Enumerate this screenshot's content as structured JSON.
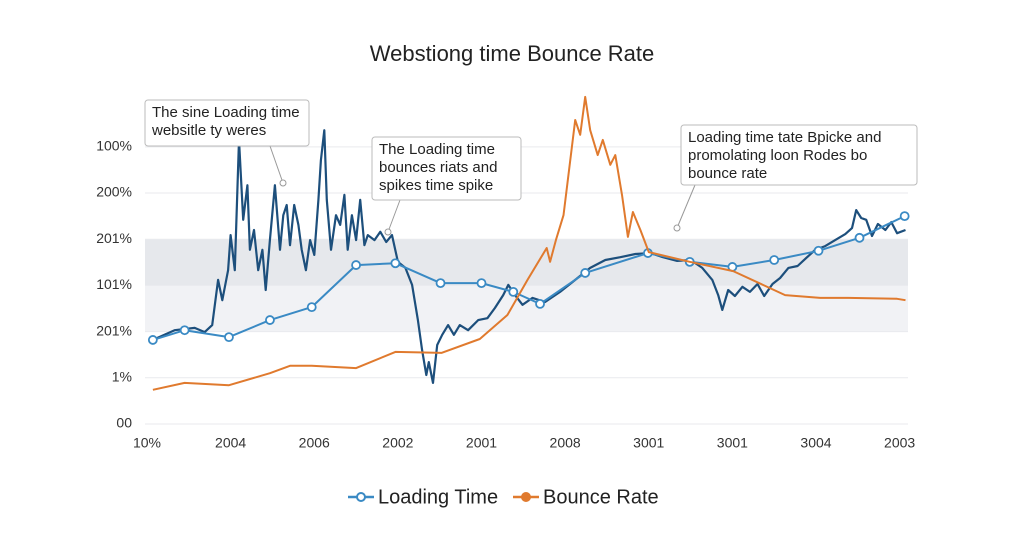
{
  "chart_data": {
    "type": "line",
    "title": "Webstiong time Bounce Rate",
    "xlim": [
      0,
      9.1
    ],
    "xticks": [
      {
        "value": 0,
        "label": "10%"
      },
      {
        "value": 1,
        "label": "2004"
      },
      {
        "value": 2,
        "label": "2006"
      },
      {
        "value": 3,
        "label": "2002"
      },
      {
        "value": 4,
        "label": "2001"
      },
      {
        "value": 5,
        "label": "2008"
      },
      {
        "value": 6,
        "label": "3001"
      },
      {
        "value": 7,
        "label": "3001"
      },
      {
        "value": 8,
        "label": "3004"
      },
      {
        "value": 9,
        "label": "2003"
      }
    ],
    "ylim": [
      0,
      7.1
    ],
    "yticks": [
      {
        "value": 0,
        "label": "00"
      },
      {
        "value": 1,
        "label": "1%"
      },
      {
        "value": 2,
        "label": "201%"
      },
      {
        "value": 3,
        "label": "101%"
      },
      {
        "value": 4,
        "label": "201%"
      },
      {
        "value": 5,
        "label": "200%"
      },
      {
        "value": 6,
        "label": "100%"
      }
    ],
    "grid": true,
    "bands": [
      {
        "from": 3,
        "to": 4,
        "color": "#e6e8ec"
      },
      {
        "from": 2,
        "to": 3,
        "color": "#f1f2f5"
      }
    ],
    "series": [
      {
        "color": "#1d4f7c",
        "markers": false,
        "x": [
          0.07,
          0.33,
          0.57,
          0.69,
          0.78,
          0.85,
          0.9,
          0.97,
          1.0,
          1.05,
          1.1,
          1.15,
          1.2,
          1.23,
          1.28,
          1.33,
          1.38,
          1.42,
          1.47,
          1.53,
          1.59,
          1.63,
          1.67,
          1.71,
          1.76,
          1.81,
          1.85,
          1.9,
          1.95,
          2.0,
          2.05,
          2.08,
          2.12,
          2.15,
          2.2,
          2.26,
          2.31,
          2.36,
          2.4,
          2.45,
          2.5,
          2.55,
          2.6,
          2.64,
          2.72,
          2.79,
          2.86,
          2.93,
          3.0,
          3.09,
          3.17,
          3.24,
          3.29,
          3.34,
          3.37,
          3.42,
          3.47,
          3.53,
          3.6,
          3.67,
          3.74,
          3.84,
          3.96,
          4.07,
          4.16,
          4.26,
          4.32,
          4.4,
          4.49,
          4.61,
          4.76,
          4.94,
          5.12,
          5.3,
          5.48,
          5.66,
          5.84,
          6.02,
          6.17,
          6.34,
          6.5,
          6.64,
          6.76,
          6.83,
          6.88,
          6.95,
          7.03,
          7.12,
          7.21,
          7.3,
          7.38,
          7.48,
          7.57,
          7.67,
          7.78,
          7.88,
          7.99,
          8.11,
          8.23,
          8.35,
          8.43,
          8.48,
          8.54,
          8.6,
          8.67,
          8.74,
          8.83,
          8.9,
          8.97,
          9.07
        ],
        "values": [
          1.82,
          2.03,
          2.08,
          1.99,
          2.14,
          3.12,
          2.68,
          3.33,
          4.09,
          3.33,
          6.15,
          4.42,
          5.17,
          3.77,
          4.2,
          3.33,
          3.77,
          2.9,
          3.98,
          5.17,
          3.77,
          4.52,
          4.74,
          3.87,
          4.74,
          4.31,
          3.77,
          3.33,
          3.98,
          3.66,
          4.85,
          5.71,
          6.36,
          4.85,
          3.77,
          4.52,
          4.31,
          4.96,
          3.77,
          4.52,
          3.98,
          4.85,
          3.87,
          4.09,
          3.98,
          4.16,
          3.94,
          4.09,
          3.51,
          3.38,
          3.01,
          2.25,
          1.6,
          1.06,
          1.34,
          0.89,
          1.71,
          1.93,
          2.14,
          1.93,
          2.14,
          2.03,
          2.25,
          2.29,
          2.51,
          2.79,
          3.01,
          2.79,
          2.58,
          2.73,
          2.64,
          2.86,
          3.12,
          3.38,
          3.55,
          3.61,
          3.68,
          3.7,
          3.61,
          3.53,
          3.55,
          3.38,
          3.12,
          2.79,
          2.47,
          2.9,
          2.77,
          2.97,
          2.86,
          3.03,
          2.77,
          3.03,
          3.16,
          3.38,
          3.42,
          3.59,
          3.77,
          3.85,
          3.98,
          4.11,
          4.24,
          4.63,
          4.46,
          4.42,
          4.07,
          4.33,
          4.2,
          4.37,
          4.13,
          4.2
        ]
      },
      {
        "name": "Loading Time",
        "color": "#3a8ac4",
        "markers": true,
        "x": [
          0.07,
          0.45,
          0.98,
          1.47,
          1.97,
          2.5,
          2.97,
          3.51,
          4.0,
          4.38,
          4.7,
          5.24,
          5.99,
          6.49,
          7.0,
          7.5,
          8.03,
          8.52,
          9.06
        ],
        "values": [
          1.82,
          2.03,
          1.88,
          2.25,
          2.53,
          3.44,
          3.48,
          3.05,
          3.05,
          2.86,
          2.6,
          3.27,
          3.7,
          3.51,
          3.4,
          3.55,
          3.75,
          4.03,
          4.5
        ]
      },
      {
        "name": "Bounce Rate",
        "color": "#e07a2e",
        "markers": false,
        "x": [
          0.07,
          0.45,
          0.98,
          1.47,
          1.71,
          1.97,
          2.5,
          2.97,
          3.52,
          3.98,
          4.31,
          4.55,
          4.78,
          4.82,
          4.89,
          4.98,
          5.12,
          5.18,
          5.24,
          5.3,
          5.39,
          5.45,
          5.54,
          5.6,
          5.68,
          5.75,
          5.81,
          5.9,
          6.0,
          6.49,
          7.01,
          7.63,
          8.05,
          8.39,
          8.97,
          9.07
        ],
        "values": [
          0.74,
          0.89,
          0.84,
          1.1,
          1.26,
          1.26,
          1.21,
          1.56,
          1.54,
          1.84,
          2.36,
          3.12,
          3.81,
          3.51,
          3.98,
          4.52,
          6.58,
          6.26,
          7.08,
          6.36,
          5.82,
          6.15,
          5.61,
          5.82,
          4.96,
          4.05,
          4.59,
          4.2,
          3.72,
          3.51,
          3.31,
          2.79,
          2.73,
          2.73,
          2.71,
          2.68
        ]
      }
    ],
    "annotations": [
      {
        "lines": [
          "The sine Loading time",
          "websitle ty weres"
        ]
      },
      {
        "lines": [
          "The Loading time",
          "bounces riats and",
          "spikes time spike"
        ]
      },
      {
        "lines": [
          "Loading time tate Bpicke and",
          "promolating loon Rodes bo",
          "bounce rate"
        ]
      }
    ]
  }
}
